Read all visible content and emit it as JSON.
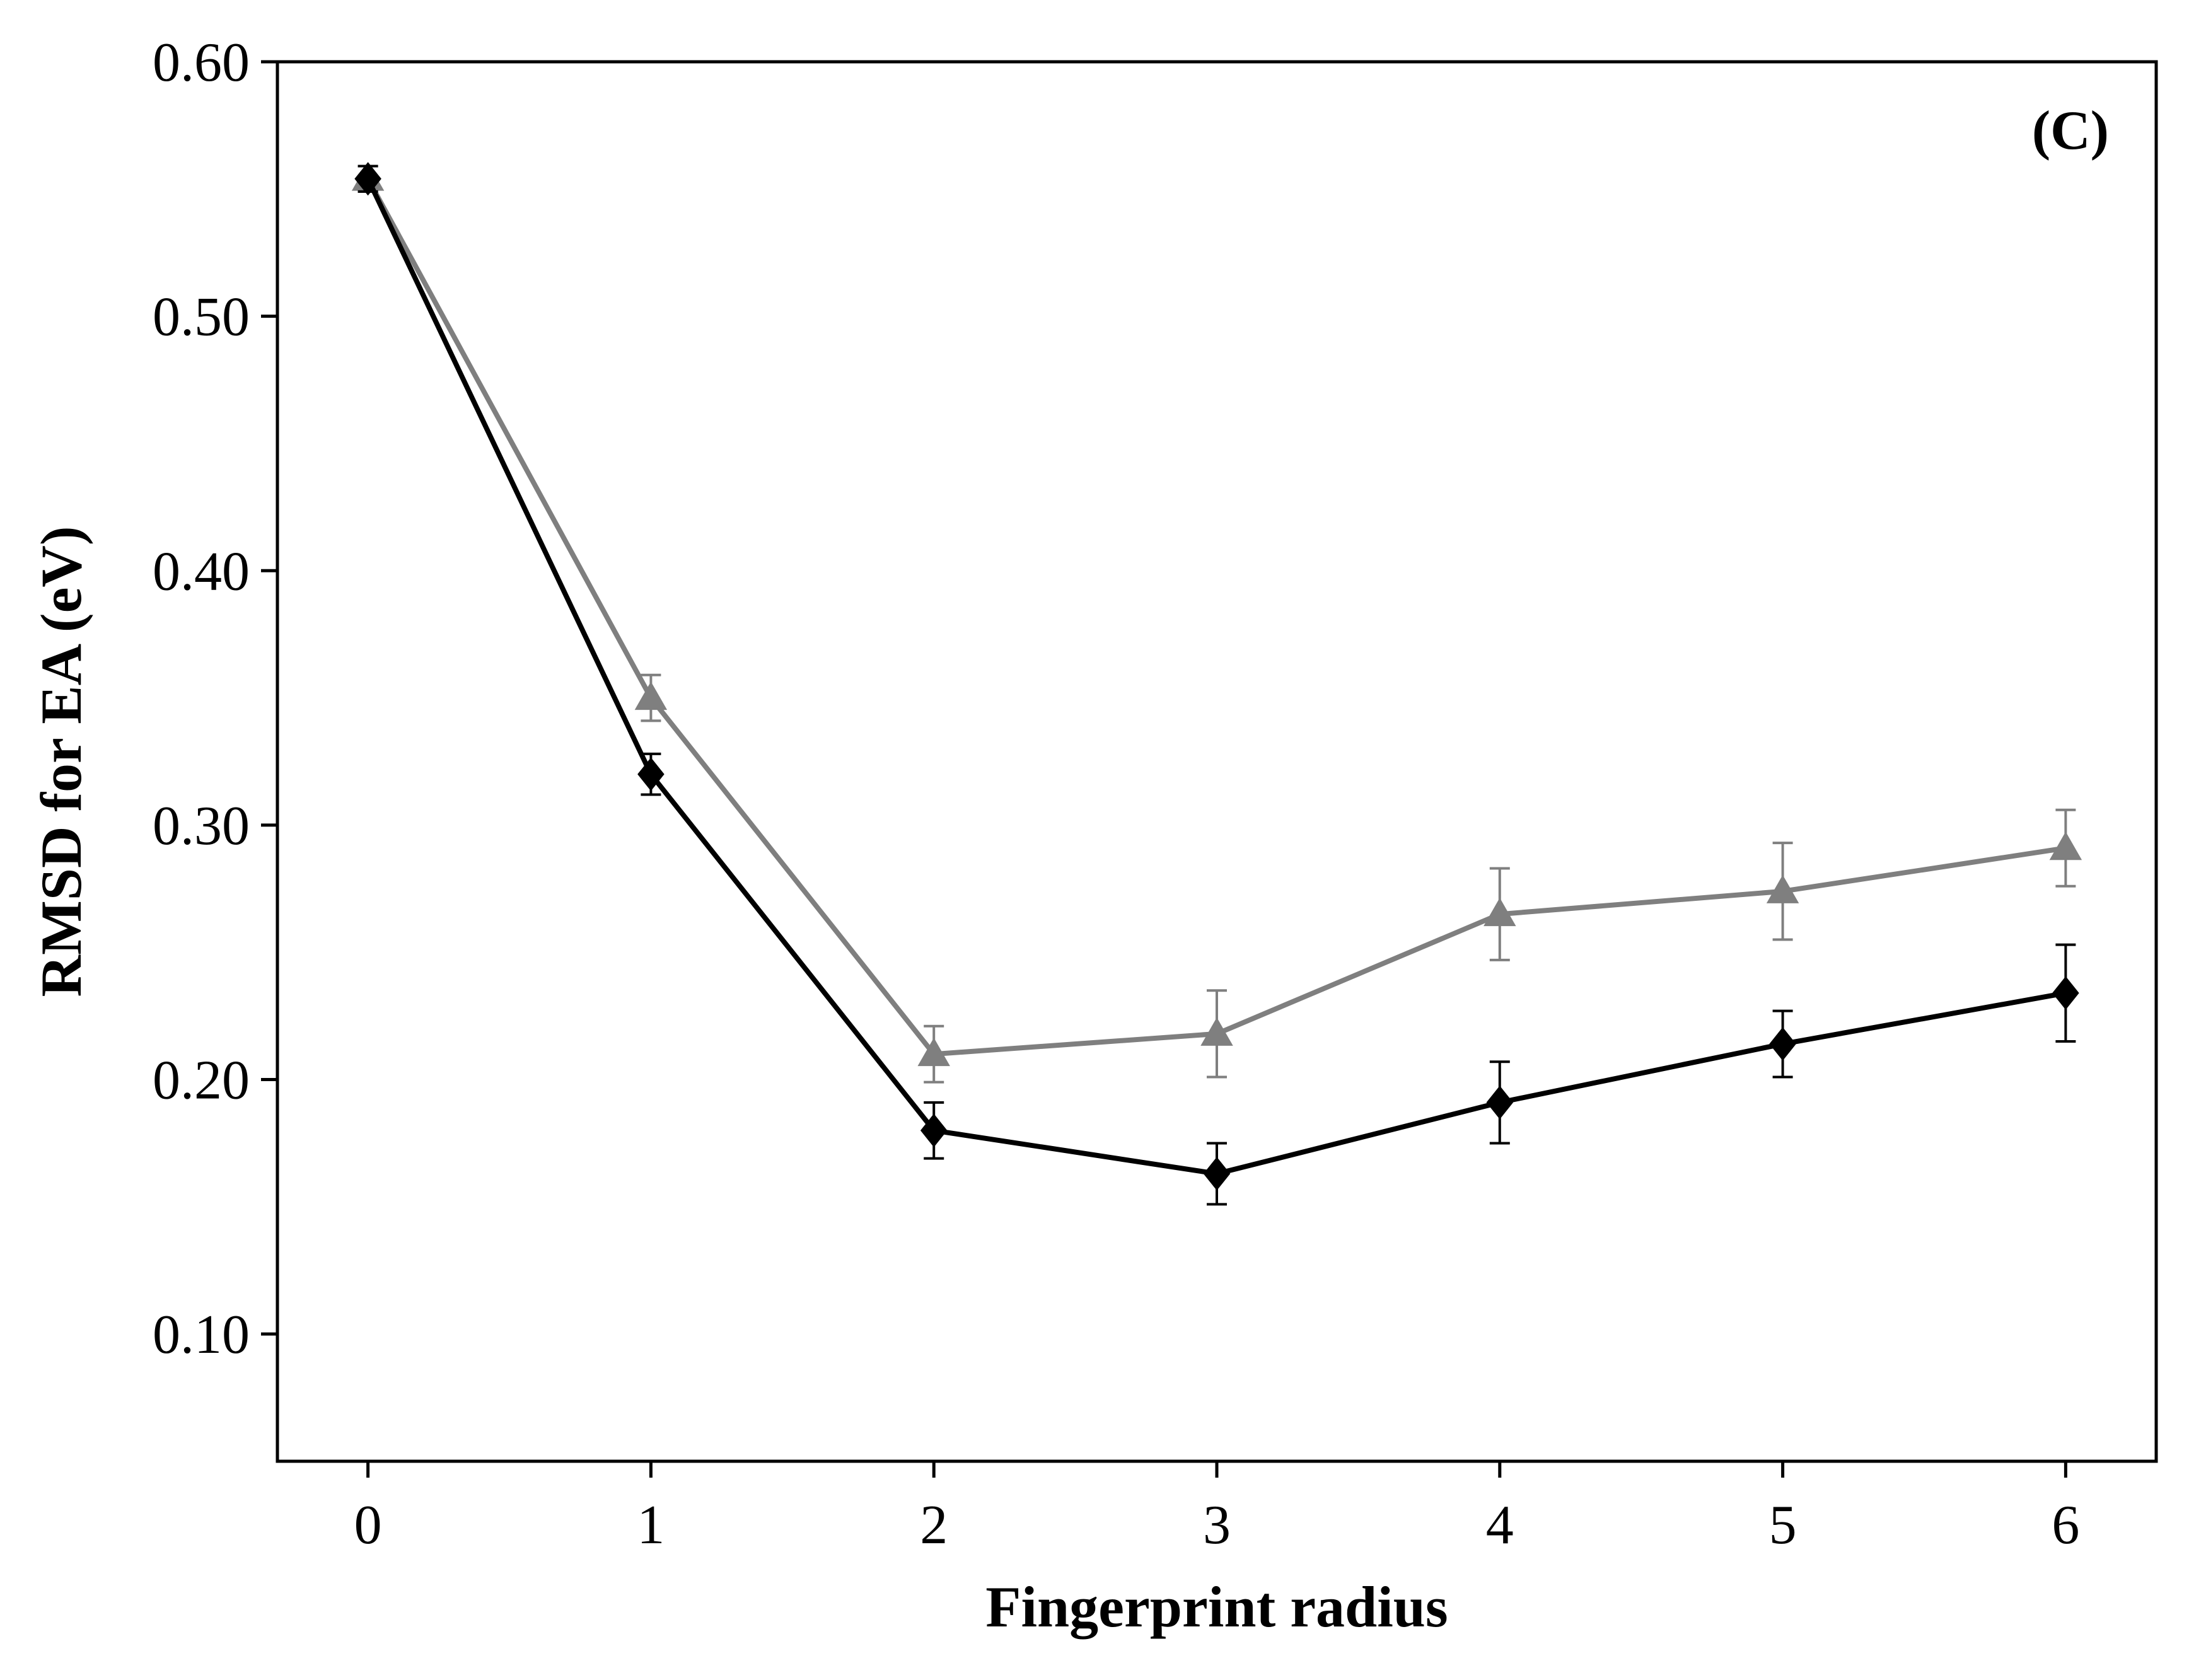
{
  "chart_data": {
    "type": "line",
    "panel_label": "(C)",
    "xlabel": "Fingerprint radius",
    "ylabel": "RMSD for EA (eV)",
    "xlim": [
      -0.32,
      6.32
    ],
    "ylim": [
      0.05,
      0.6
    ],
    "x_ticks": [
      0,
      1,
      2,
      3,
      4,
      5,
      6
    ],
    "x_tick_labels": [
      "0",
      "1",
      "2",
      "3",
      "4",
      "5",
      "6"
    ],
    "y_ticks": [
      0.1,
      0.2,
      0.3,
      0.4,
      0.5,
      0.6
    ],
    "y_tick_labels": [
      "0.10",
      "0.20",
      "0.30",
      "0.40",
      "0.50",
      "0.60"
    ],
    "grid": false,
    "legend": "none",
    "series": [
      {
        "marker": "triangle",
        "color": "#7f7f7f",
        "x": [
          0,
          1,
          2,
          3,
          4,
          5,
          6
        ],
        "y": [
          0.554,
          0.35,
          0.21,
          0.218,
          0.265,
          0.274,
          0.291
        ],
        "error": [
          0.005,
          0.009,
          0.011,
          0.017,
          0.018,
          0.019,
          0.015
        ]
      },
      {
        "marker": "diamond",
        "color": "#000000",
        "x": [
          0,
          1,
          2,
          3,
          4,
          5,
          6
        ],
        "y": [
          0.554,
          0.32,
          0.18,
          0.163,
          0.191,
          0.214,
          0.234
        ],
        "error": [
          0.005,
          0.008,
          0.011,
          0.012,
          0.016,
          0.013,
          0.019
        ]
      }
    ]
  }
}
